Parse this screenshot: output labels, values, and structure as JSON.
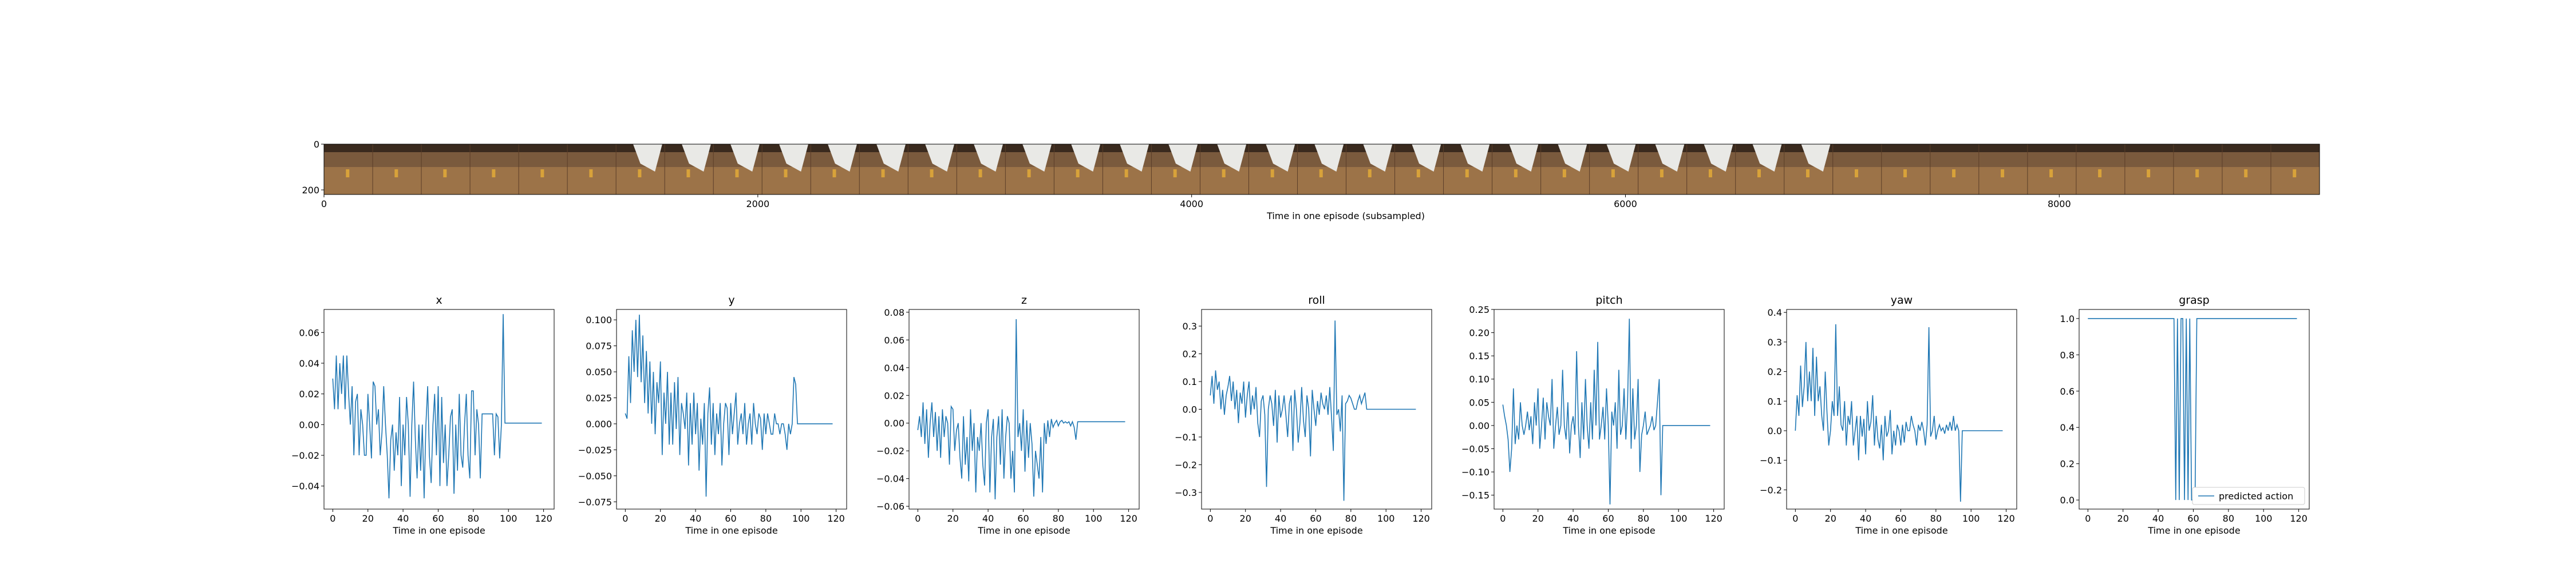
{
  "chart_data": [
    {
      "type": "image_strip",
      "xlabel": "Time in one episode (subsampled)",
      "x_ticks": [
        0,
        2000,
        4000,
        6000,
        8000
      ],
      "xlim": [
        0,
        9200
      ],
      "y_ticks": [
        0,
        200
      ],
      "ylim": [
        0,
        220
      ],
      "frame_count": 41
    },
    {
      "type": "line",
      "title": "x",
      "xlabel": "Time in one episode",
      "xlim": [
        -5,
        126
      ],
      "ylim": [
        -0.055,
        0.075
      ],
      "x_ticks": [
        0,
        20,
        40,
        60,
        80,
        100,
        120
      ],
      "y_ticks": [
        -0.04,
        -0.02,
        0.0,
        0.02,
        0.04,
        0.06
      ],
      "y_tick_labels": [
        "−0.04",
        "−0.02",
        "0.00",
        "0.02",
        "0.04",
        "0.06"
      ],
      "values": [
        0.03,
        0.01,
        0.045,
        0.01,
        0.04,
        0.02,
        0.045,
        0.01,
        0.045,
        0.02,
        0.0,
        0.025,
        -0.02,
        0.015,
        0.02,
        -0.02,
        0.01,
        0.0,
        -0.02,
        -0.02,
        0.02,
        0.0,
        -0.022,
        0.028,
        0.025,
        0.0,
        0.01,
        -0.02,
        -0.005,
        0.025,
        0.0,
        -0.02,
        -0.048,
        -0.01,
        0.0,
        -0.03,
        -0.005,
        -0.02,
        0.018,
        -0.04,
        0.0,
        -0.02,
        0.018,
        0.0,
        -0.047,
        0.0,
        0.028,
        -0.01,
        -0.035,
        0.0,
        -0.03,
        0.0,
        -0.048,
        0.0,
        0.025,
        -0.02,
        -0.038,
        0.0,
        0.02,
        -0.02,
        0.025,
        -0.04,
        0.018,
        -0.025,
        0.0,
        -0.04,
        -0.02,
        0.005,
        0.01,
        -0.045,
        0.0,
        -0.03,
        0.02,
        -0.02,
        -0.028,
        0.0,
        0.02,
        -0.02,
        -0.035,
        0.022,
        0.022,
        -0.02,
        0.01,
        0.0,
        -0.035,
        0.007,
        0.007,
        0.007,
        0.007,
        0.007,
        0.007,
        0.007,
        -0.02,
        0.007,
        0.005,
        -0.022,
        0.0,
        0.072,
        0.001,
        0.001,
        0.001,
        0.001,
        0.001,
        0.001,
        0.001,
        0.001,
        0.001,
        0.001,
        0.001,
        0.001,
        0.001,
        0.001,
        0.001,
        0.001,
        0.001,
        0.001,
        0.001,
        0.001,
        0.001,
        0.001
      ]
    },
    {
      "type": "line",
      "title": "y",
      "xlabel": "Time in one episode",
      "xlim": [
        -5,
        126
      ],
      "ylim": [
        -0.082,
        0.11
      ],
      "x_ticks": [
        0,
        20,
        40,
        60,
        80,
        100,
        120
      ],
      "y_ticks": [
        -0.075,
        -0.05,
        -0.025,
        0.0,
        0.025,
        0.05,
        0.075,
        0.1
      ],
      "y_tick_labels": [
        "−0.075",
        "−0.050",
        "−0.025",
        "0.000",
        "0.025",
        "0.050",
        "0.075",
        "0.100"
      ],
      "values": [
        0.01,
        0.005,
        0.065,
        0.02,
        0.09,
        0.05,
        0.1,
        0.045,
        0.105,
        0.04,
        0.085,
        0.02,
        0.07,
        0.01,
        0.06,
        0.0,
        0.05,
        -0.01,
        0.04,
        0.02,
        0.06,
        -0.03,
        0.03,
        0.0,
        0.05,
        -0.02,
        0.03,
        -0.02,
        0.04,
        -0.005,
        0.045,
        -0.03,
        0.02,
        0.01,
        -0.005,
        0.03,
        -0.04,
        0.02,
        -0.02,
        0.03,
        -0.01,
        0.02,
        -0.045,
        0.005,
        -0.02,
        0.02,
        -0.07,
        0.01,
        0.035,
        -0.02,
        0.02,
        -0.03,
        0.01,
        -0.01,
        0.02,
        -0.04,
        0.0,
        0.02,
        0.015,
        -0.03,
        0.02,
        -0.01,
        0.01,
        0.03,
        -0.02,
        0.0,
        0.01,
        -0.01,
        0.02,
        -0.02,
        0.0,
        0.01,
        -0.02,
        0.02,
        0.0,
        -0.01,
        0.01,
        0.005,
        -0.025,
        0.01,
        -0.01,
        0.01,
        0.0,
        -0.01,
        -0.01,
        0.01,
        0.0,
        0.0,
        -0.01,
        0.0,
        0.0,
        -0.01,
        -0.025,
        0.0,
        -0.01,
        0.0,
        0.045,
        0.038,
        0.0,
        0.0,
        0.0,
        0.0,
        0.0,
        0.0,
        0.0,
        0.0,
        0.0,
        0.0,
        0.0,
        0.0,
        0.0,
        0.0,
        0.0,
        0.0,
        0.0,
        0.0,
        0.0,
        0.0,
        0.0
      ]
    },
    {
      "type": "line",
      "title": "z",
      "xlabel": "Time in one episode",
      "xlim": [
        -5,
        126
      ],
      "ylim": [
        -0.062,
        0.082
      ],
      "x_ticks": [
        0,
        20,
        40,
        60,
        80,
        100,
        120
      ],
      "y_ticks": [
        -0.06,
        -0.04,
        -0.02,
        0.0,
        0.02,
        0.04,
        0.06,
        0.08
      ],
      "y_tick_labels": [
        "−0.06",
        "−0.04",
        "−0.02",
        "0.00",
        "0.02",
        "0.04",
        "0.06",
        "0.08"
      ],
      "values": [
        -0.005,
        0.005,
        -0.01,
        0.015,
        -0.015,
        0.01,
        -0.025,
        0.0,
        0.015,
        -0.01,
        0.008,
        -0.02,
        0.005,
        -0.025,
        0.01,
        -0.01,
        0.005,
        0.0,
        -0.03,
        0.012,
        0.01,
        -0.02,
        -0.005,
        0.0,
        -0.025,
        -0.04,
        0.005,
        -0.03,
        -0.01,
        -0.042,
        0.01,
        -0.02,
        0.0,
        -0.05,
        -0.01,
        -0.02,
        0.0,
        -0.03,
        -0.045,
        0.0,
        0.01,
        -0.05,
        -0.01,
        0.003,
        -0.055,
        -0.01,
        0.005,
        -0.03,
        0.01,
        -0.04,
        -0.01,
        0.005,
        0.0,
        -0.04,
        -0.02,
        -0.05,
        0.075,
        -0.01,
        0.0,
        -0.02,
        0.01,
        -0.035,
        0.002,
        -0.025,
        0.0,
        -0.015,
        -0.053,
        -0.02,
        -0.03,
        -0.04,
        -0.01,
        -0.05,
        0.0,
        -0.015,
        0.002,
        -0.01,
        0.003,
        -0.003,
        0.0,
        0.002,
        -0.002,
        0.001,
        0.002,
        0.0,
        0.001,
        0.0,
        0.001,
        -0.002,
        0.001,
        -0.003,
        -0.012,
        0.001,
        0.001,
        0.001,
        0.001,
        0.001,
        0.001,
        0.001,
        0.001,
        0.001,
        0.001,
        0.001,
        0.001,
        0.001,
        0.001,
        0.001,
        0.001,
        0.001,
        0.001,
        0.001,
        0.001,
        0.001,
        0.001,
        0.001,
        0.001,
        0.001,
        0.001,
        0.001,
        0.001
      ]
    },
    {
      "type": "line",
      "title": "roll",
      "xlabel": "Time in one episode",
      "xlim": [
        -5,
        126
      ],
      "ylim": [
        -0.36,
        0.36
      ],
      "x_ticks": [
        0,
        20,
        40,
        60,
        80,
        100,
        120
      ],
      "y_ticks": [
        -0.3,
        -0.2,
        -0.1,
        0.0,
        0.1,
        0.2,
        0.3
      ],
      "y_tick_labels": [
        "−0.3",
        "−0.2",
        "−0.1",
        "0.0",
        "0.1",
        "0.2",
        "0.3"
      ],
      "values": [
        0.05,
        0.12,
        0.02,
        0.14,
        0.07,
        0.1,
        0.0,
        0.07,
        -0.02,
        0.05,
        0.08,
        0.12,
        0.03,
        0.1,
        0.0,
        0.07,
        -0.05,
        0.06,
        0.02,
        0.1,
        -0.03,
        0.05,
        0.1,
        -0.02,
        0.05,
        0.0,
        0.08,
        -0.05,
        -0.1,
        0.03,
        0.05,
        -0.02,
        -0.28,
        0.0,
        0.05,
        0.02,
        -0.06,
        0.07,
        -0.12,
        0.05,
        -0.03,
        0.0,
        0.05,
        -0.02,
        -0.1,
        0.02,
        0.05,
        -0.15,
        0.07,
        0.0,
        -0.12,
        -0.05,
        0.08,
        -0.04,
        -0.1,
        0.05,
        0.0,
        -0.17,
        0.07,
        0.0,
        -0.06,
        0.03,
        -0.02,
        0.06,
        0.02,
        0.0,
        0.05,
        -0.02,
        0.08,
        -0.03,
        -0.15,
        0.32,
        -0.02,
        0.0,
        -0.08,
        0.05,
        -0.33,
        0.02,
        0.03,
        0.05,
        0.04,
        0.02,
        0.0,
        0.0,
        0.03,
        0.05,
        0.02,
        0.04,
        0.06,
        0.0,
        0.0,
        0.0,
        0.0,
        0.0,
        0.0,
        0.0,
        0.0,
        0.0,
        0.0,
        0.0,
        0.0,
        0.0,
        0.0,
        0.0,
        0.0,
        0.0,
        0.0,
        0.0,
        0.0,
        0.0,
        0.0,
        0.0,
        0.0,
        0.0,
        0.0,
        0.0,
        0.0,
        0.0
      ]
    },
    {
      "type": "line",
      "title": "pitch",
      "xlabel": "Time in one episode",
      "xlim": [
        -5,
        126
      ],
      "ylim": [
        -0.18,
        0.25
      ],
      "x_ticks": [
        0,
        20,
        40,
        60,
        80,
        100,
        120
      ],
      "y_ticks": [
        -0.15,
        -0.1,
        -0.05,
        0.0,
        0.05,
        0.1,
        0.15,
        0.2,
        0.25
      ],
      "y_tick_labels": [
        "−0.15",
        "−0.10",
        "−0.05",
        "0.00",
        "0.05",
        "0.10",
        "0.15",
        "0.20",
        "0.25"
      ],
      "values": [
        0.045,
        0.02,
        0.0,
        -0.03,
        -0.1,
        -0.05,
        0.08,
        -0.04,
        0.0,
        -0.03,
        0.05,
        0.0,
        -0.02,
        0.0,
        0.03,
        -0.01,
        0.02,
        -0.04,
        0.05,
        0.0,
        0.08,
        -0.05,
        0.0,
        0.06,
        -0.03,
        0.05,
        0.02,
        0.0,
        0.1,
        -0.05,
        0.0,
        0.04,
        -0.02,
        0.0,
        0.12,
        0.0,
        -0.03,
        0.05,
        -0.06,
        0.0,
        0.02,
        -0.02,
        0.16,
        0.0,
        -0.07,
        0.05,
        -0.03,
        0.1,
        0.0,
        -0.05,
        0.05,
        -0.03,
        0.12,
        0.0,
        0.18,
        -0.03,
        0.0,
        0.04,
        -0.03,
        0.08,
        0.0,
        -0.17,
        0.03,
        0.0,
        0.05,
        -0.05,
        0.12,
        -0.02,
        0.0,
        0.08,
        -0.03,
        0.05,
        0.23,
        -0.05,
        0.08,
        -0.03,
        0.0,
        0.1,
        -0.1,
        -0.02,
        0.0,
        0.03,
        -0.02,
        -0.01,
        0.0,
        0.02,
        -0.01,
        0.0,
        0.05,
        0.1,
        -0.15,
        0.0,
        0.0,
        0.0,
        0.0,
        0.0,
        0.0,
        0.0,
        0.0,
        0.0,
        0.0,
        0.0,
        0.0,
        0.0,
        0.0,
        0.0,
        0.0,
        0.0,
        0.0,
        0.0,
        0.0,
        0.0,
        0.0,
        0.0,
        0.0,
        0.0,
        0.0,
        0.0,
        0.0
      ]
    },
    {
      "type": "line",
      "title": "yaw",
      "xlabel": "Time in one episode",
      "xlim": [
        -5,
        126
      ],
      "ylim": [
        -0.265,
        0.41
      ],
      "x_ticks": [
        0,
        20,
        40,
        60,
        80,
        100,
        120
      ],
      "y_ticks": [
        -0.2,
        -0.1,
        0.0,
        0.1,
        0.2,
        0.3,
        0.4
      ],
      "y_tick_labels": [
        "−0.2",
        "−0.1",
        "0.0",
        "0.1",
        "0.2",
        "0.3",
        "0.4"
      ],
      "values": [
        0.0,
        0.12,
        0.05,
        0.22,
        0.08,
        0.15,
        0.3,
        0.1,
        0.2,
        0.1,
        0.28,
        0.05,
        0.25,
        0.1,
        0.15,
        0.05,
        0.0,
        0.2,
        0.06,
        -0.05,
        0.0,
        0.1,
        0.05,
        0.36,
        0.05,
        0.15,
        0.02,
        0.0,
        0.1,
        -0.05,
        0.05,
        0.02,
        0.1,
        -0.05,
        0.0,
        0.05,
        -0.1,
        0.05,
        -0.02,
        0.04,
        -0.08,
        0.1,
        0.0,
        0.03,
        0.12,
        -0.05,
        0.05,
        -0.03,
        -0.06,
        0.02,
        -0.1,
        0.05,
        -0.02,
        0.0,
        0.07,
        -0.08,
        0.0,
        -0.05,
        0.02,
        0.0,
        -0.05,
        0.02,
        -0.04,
        0.03,
        0.0,
        0.0,
        0.05,
        0.02,
        0.0,
        -0.05,
        0.02,
        0.0,
        0.03,
        0.0,
        -0.05,
        0.02,
        0.35,
        -0.02,
        0.0,
        0.05,
        -0.03,
        0.0,
        0.02,
        0.0,
        0.01,
        -0.01,
        0.02,
        0.0,
        0.03,
        0.0,
        0.05,
        0.0,
        0.02,
        0.0,
        -0.24,
        0.0,
        0.0,
        0.0,
        0.0,
        0.0,
        0.0,
        0.0,
        0.0,
        0.0,
        0.0,
        0.0,
        0.0,
        0.0,
        0.0,
        0.0,
        0.0,
        0.0,
        0.0,
        0.0,
        0.0,
        0.0,
        0.0,
        0.0,
        0.0
      ]
    },
    {
      "type": "line",
      "title": "grasp",
      "xlabel": "Time in one episode",
      "xlim": [
        -5,
        126
      ],
      "ylim": [
        -0.05,
        1.05
      ],
      "x_ticks": [
        0,
        20,
        40,
        60,
        80,
        100,
        120
      ],
      "y_ticks": [
        0.0,
        0.2,
        0.4,
        0.6,
        0.8,
        1.0
      ],
      "y_tick_labels": [
        "0.0",
        "0.2",
        "0.4",
        "0.6",
        "0.8",
        "1.0"
      ],
      "legend": "predicted action",
      "legend_position": "lower-right",
      "values": [
        1,
        1,
        1,
        1,
        1,
        1,
        1,
        1,
        1,
        1,
        1,
        1,
        1,
        1,
        1,
        1,
        1,
        1,
        1,
        1,
        1,
        1,
        1,
        1,
        1,
        1,
        1,
        1,
        1,
        1,
        1,
        1,
        1,
        1,
        1,
        1,
        1,
        1,
        1,
        1,
        1,
        1,
        1,
        1,
        1,
        1,
        1,
        1,
        1,
        1,
        0,
        1,
        0,
        1,
        1,
        0,
        1,
        0,
        1,
        0,
        0,
        0,
        1,
        1,
        1,
        1,
        1,
        1,
        1,
        1,
        1,
        1,
        1,
        1,
        1,
        1,
        1,
        1,
        1,
        1,
        1,
        1,
        1,
        1,
        1,
        1,
        1,
        1,
        1,
        1,
        1,
        1,
        1,
        1,
        1,
        1,
        1,
        1,
        1,
        1,
        1,
        1,
        1,
        1,
        1,
        1,
        1,
        1,
        1,
        1,
        1,
        1,
        1,
        1,
        1,
        1,
        1,
        1,
        1,
        1
      ]
    }
  ]
}
